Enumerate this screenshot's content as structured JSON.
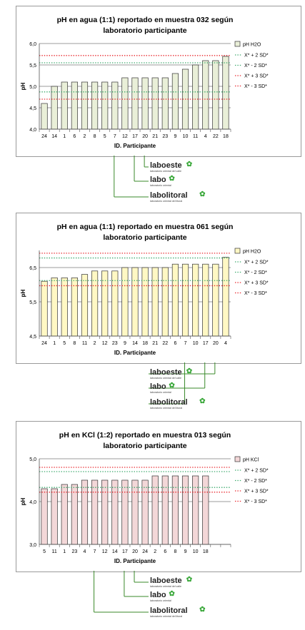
{
  "legend_labels": [
    "X* + 2 SD*",
    "X* - 2 SD*",
    "X* + 3 SD*",
    "X* - 3 SD*"
  ],
  "logos": [
    {
      "name": "laboeste",
      "text": "laboeste",
      "sub": "laboratorio oriental del valle"
    },
    {
      "name": "labo",
      "text": "labo",
      "sub": "laboratorio oriental"
    },
    {
      "name": "labolitoral",
      "text": "labolitoral",
      "sub": "laboratorio oriental del litoral"
    }
  ],
  "colors": {
    "sd2": "#3aa86b",
    "sd3": "#e8242a",
    "axis": "#808080"
  },
  "chart_data": [
    {
      "type": "bar",
      "title": "pH en agua (1:1) reportado en muestra 032 según laboratorio participante",
      "title_lines": [
        "pH en agua (1:1) reportado en muestra 032 según",
        "laboratorio participante"
      ],
      "xlabel": "ID. Participante",
      "ylabel": "pH",
      "ylim": [
        4.0,
        6.0
      ],
      "yticks": [
        "4,0",
        "4,5",
        "5,0",
        "5,5",
        "6,0"
      ],
      "ytick_values": [
        4.0,
        4.5,
        5.0,
        5.5,
        6.0
      ],
      "categories": [
        "24",
        "14",
        "1",
        "6",
        "2",
        "8",
        "5",
        "7",
        "12",
        "17",
        "20",
        "21",
        "23",
        "9",
        "10",
        "11",
        "4",
        "22",
        "18"
      ],
      "series": [
        {
          "name": "pH H2O",
          "values": [
            4.6,
            5.0,
            5.1,
            5.1,
            5.1,
            5.1,
            5.1,
            5.1,
            5.2,
            5.2,
            5.2,
            5.2,
            5.2,
            5.3,
            5.4,
            5.5,
            5.6,
            5.6,
            5.7
          ]
        }
      ],
      "bar_color": "#e9efd8",
      "reference_lines": {
        "plus2": 5.55,
        "minus2": 4.87,
        "plus3": 5.72,
        "minus3": 4.7
      },
      "extra_slots": 0,
      "pointers": [
        {
          "logo": "laboeste",
          "category": "20"
        },
        {
          "logo": "labo",
          "category": "17"
        },
        {
          "logo": "labolitoral",
          "category": "7"
        }
      ]
    },
    {
      "type": "bar",
      "title": "pH en agua (1:1) reportado en muestra 061 según laboratorio participante",
      "title_lines": [
        "pH en agua (1:1) reportado en muestra 061 según",
        "laboratorio participante"
      ],
      "xlabel": "ID. Participante",
      "ylabel": "pH",
      "ylim": [
        4.5,
        7.0
      ],
      "yticks": [
        "4,5",
        "5,5",
        "6,5"
      ],
      "ytick_values": [
        4.5,
        5.5,
        6.5
      ],
      "categories": [
        "24",
        "1",
        "5",
        "8",
        "11",
        "2",
        "12",
        "23",
        "9",
        "14",
        "18",
        "21",
        "22",
        "6",
        "7",
        "10",
        "17",
        "20",
        "4"
      ],
      "series": [
        {
          "name": "pH H2O",
          "values": [
            6.1,
            6.2,
            6.2,
            6.2,
            6.3,
            6.4,
            6.4,
            6.4,
            6.5,
            6.5,
            6.5,
            6.5,
            6.5,
            6.6,
            6.6,
            6.6,
            6.6,
            6.6,
            6.8
          ]
        }
      ],
      "bar_color": "#fff8c4",
      "reference_lines": {
        "plus2": 6.78,
        "minus2": 6.12,
        "plus3": 6.92,
        "minus3": 5.97
      },
      "extra_slots": 0,
      "pointers": [
        {
          "logo": "laboeste",
          "category": "20"
        },
        {
          "logo": "labo",
          "category": "17"
        },
        {
          "logo": "labolitoral",
          "category": "7"
        }
      ]
    },
    {
      "type": "bar",
      "title": "pH en KCl (1:2) reportado en muestra 013 según laboratorio participante",
      "title_lines": [
        "pH en KCl (1:2) reportado en muestra 013 según",
        "laboratorio participante"
      ],
      "xlabel": "ID. Participante",
      "ylabel": "pH",
      "ylim": [
        3.0,
        5.0
      ],
      "yticks": [
        "3,0",
        "4,0",
        "5,0"
      ],
      "ytick_values": [
        3.0,
        4.0,
        5.0
      ],
      "categories": [
        "5",
        "11",
        "1",
        "23",
        "4",
        "7",
        "12",
        "14",
        "17",
        "20",
        "24",
        "2",
        "6",
        "8",
        "9",
        "10",
        "18"
      ],
      "series": [
        {
          "name": "pH KCl",
          "values": [
            4.3,
            4.3,
            4.4,
            4.4,
            4.5,
            4.5,
            4.5,
            4.5,
            4.5,
            4.5,
            4.5,
            4.6,
            4.6,
            4.6,
            4.6,
            4.6,
            4.6
          ]
        }
      ],
      "bar_color": "#f3d7d8",
      "reference_lines": {
        "plus2": 4.7,
        "minus2": 4.33,
        "plus3": 4.8,
        "minus3": 4.22
      },
      "extra_slots": 2,
      "pointers": [
        {
          "logo": "laboeste",
          "category": "20"
        },
        {
          "logo": "labo",
          "category": "17"
        },
        {
          "logo": "labolitoral",
          "category": "7"
        }
      ]
    }
  ]
}
